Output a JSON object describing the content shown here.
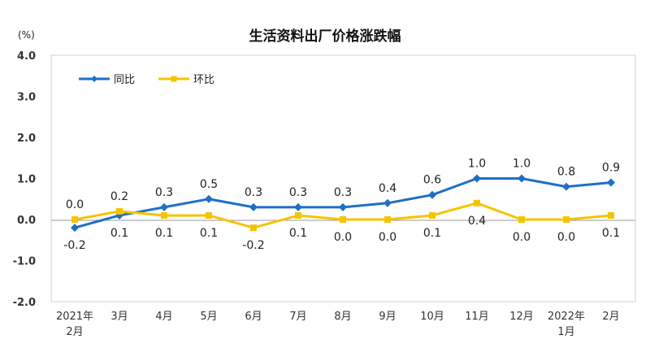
{
  "chart_data": {
    "type": "line",
    "title": "生活资料出厂价格涨跌幅",
    "unit": "(%)",
    "ylim": [
      -2.0,
      4.0
    ],
    "yticks": [
      "-2.0",
      "-1.0",
      "0.0",
      "1.0",
      "2.0",
      "3.0",
      "4.0"
    ],
    "yticks_values": [
      -2,
      -1,
      0,
      1,
      2,
      3,
      4
    ],
    "categories": [
      [
        "2021年",
        "2月"
      ],
      [
        "3月"
      ],
      [
        "4月"
      ],
      [
        "5月"
      ],
      [
        "6月"
      ],
      [
        "7月"
      ],
      [
        "8月"
      ],
      [
        "9月"
      ],
      [
        "10月"
      ],
      [
        "11月"
      ],
      [
        "12月"
      ],
      [
        "2022年",
        "1月"
      ],
      [
        "2月"
      ]
    ],
    "series": [
      {
        "name": "同比",
        "color": "#1f6fc5",
        "values": [
          -0.2,
          0.1,
          0.3,
          0.5,
          0.3,
          0.3,
          0.3,
          0.4,
          0.6,
          1.0,
          1.0,
          0.8,
          0.9
        ],
        "labels": [
          "-0.2",
          "0.1",
          "0.3",
          "0.5",
          "0.3",
          "0.3",
          "0.3",
          "0.4",
          "0.6",
          "1.0",
          "1.0",
          "0.8",
          "0.9"
        ],
        "label_pos": [
          "below",
          "below",
          "above",
          "above",
          "above",
          "above",
          "above",
          "above",
          "above",
          "above",
          "above",
          "above",
          "above"
        ]
      },
      {
        "name": "环比",
        "color": "#f5c400",
        "values": [
          0.0,
          0.2,
          0.1,
          0.1,
          -0.2,
          0.1,
          0.0,
          0.0,
          0.1,
          0.4,
          0.0,
          0.0,
          0.1
        ],
        "labels": [
          "0.0",
          "0.2",
          "0.1",
          "0.1",
          "-0.2",
          "0.1",
          "0.0",
          "0.0",
          "0.1",
          "0.4",
          "0.0",
          "0.0",
          "0.1"
        ],
        "label_pos": [
          "above",
          "above",
          "below",
          "below",
          "below",
          "below",
          "below",
          "below",
          "below",
          "below",
          "below",
          "below",
          "below"
        ]
      }
    ],
    "legend": "top-left",
    "grid": false
  }
}
